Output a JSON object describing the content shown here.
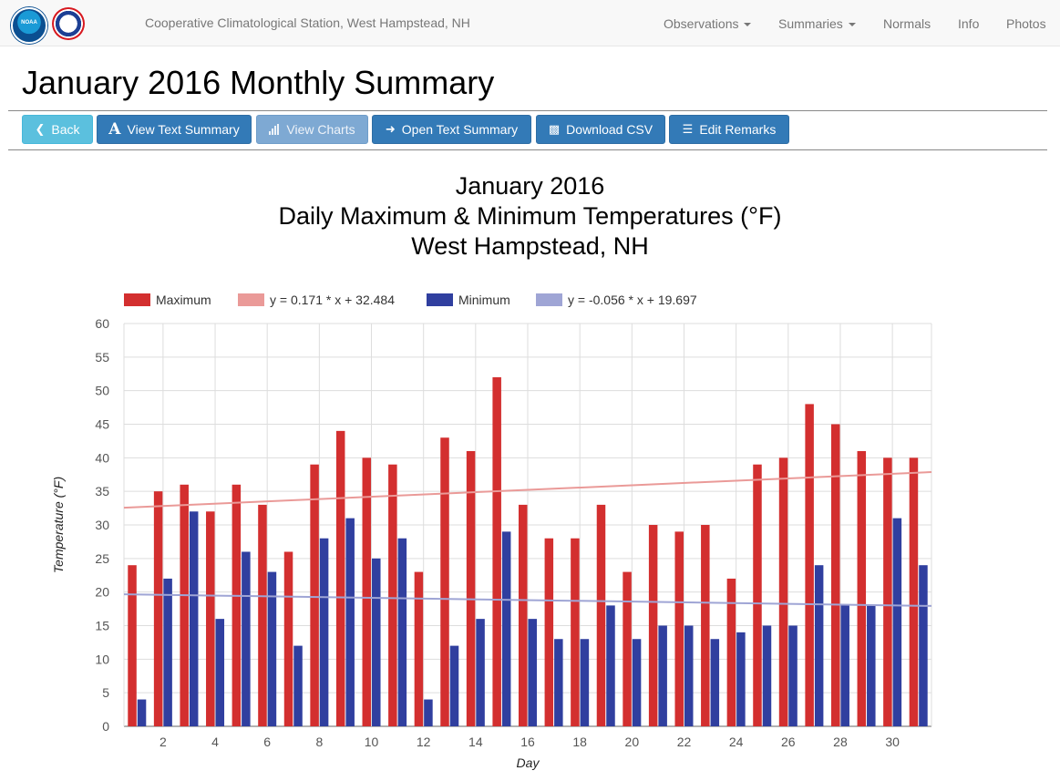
{
  "nav": {
    "station_title": "Cooperative Climatological Station, West Hampstead, NH",
    "items": [
      {
        "label": "Observations",
        "dropdown": true
      },
      {
        "label": "Summaries",
        "dropdown": true
      },
      {
        "label": "Normals",
        "dropdown": false
      },
      {
        "label": "Info",
        "dropdown": false
      },
      {
        "label": "Photos",
        "dropdown": false
      }
    ]
  },
  "page": {
    "title": "January 2016 Monthly Summary"
  },
  "toolbar": {
    "back": "Back",
    "view_text_summary": "View Text Summary",
    "view_charts": "View Charts",
    "open_text_summary": "Open Text Summary",
    "download_csv": "Download CSV",
    "edit_remarks": "Edit Remarks"
  },
  "colors": {
    "maximum": "#d32f2f",
    "max_trend": "#ea9a98",
    "minimum": "#303f9f",
    "min_trend": "#9fa5d5",
    "primary": "#337ab7",
    "info": "#5bc0de"
  },
  "chart_data": {
    "type": "bar",
    "title_lines": [
      "January 2016",
      "Daily Maximum & Minimum Temperatures (°F)",
      "West Hampstead, NH"
    ],
    "xlabel": "Day",
    "ylabel": "Temperature (°F)",
    "ylim": [
      0,
      60
    ],
    "yticks": [
      0,
      5,
      10,
      15,
      20,
      25,
      30,
      35,
      40,
      45,
      50,
      55,
      60
    ],
    "xticks": [
      2,
      4,
      6,
      8,
      10,
      12,
      14,
      16,
      18,
      20,
      22,
      24,
      26,
      28,
      30
    ],
    "x": [
      1,
      2,
      3,
      4,
      5,
      6,
      7,
      8,
      9,
      10,
      11,
      12,
      13,
      14,
      15,
      16,
      17,
      18,
      19,
      20,
      21,
      22,
      23,
      24,
      25,
      26,
      27,
      28,
      29,
      30,
      31
    ],
    "legend_position": "top-left",
    "grid": true,
    "series": [
      {
        "name": "Maximum",
        "kind": "bar",
        "values": [
          24,
          35,
          36,
          32,
          36,
          33,
          26,
          39,
          44,
          40,
          39,
          23,
          43,
          41,
          52,
          33,
          28,
          28,
          33,
          23,
          30,
          29,
          30,
          22,
          39,
          40,
          48,
          45,
          41,
          40,
          40
        ]
      },
      {
        "name": "y = 0.171 * x + 32.484",
        "kind": "trend",
        "slope": 0.171,
        "intercept": 32.484
      },
      {
        "name": "Minimum",
        "kind": "bar",
        "values": [
          4,
          22,
          32,
          16,
          26,
          23,
          12,
          28,
          31,
          25,
          28,
          4,
          12,
          16,
          29,
          16,
          13,
          13,
          18,
          13,
          15,
          15,
          13,
          14,
          15,
          15,
          24,
          18,
          18,
          31,
          24
        ]
      },
      {
        "name": "y = -0.056 * x + 19.697",
        "kind": "trend",
        "slope": -0.056,
        "intercept": 19.697
      }
    ]
  }
}
